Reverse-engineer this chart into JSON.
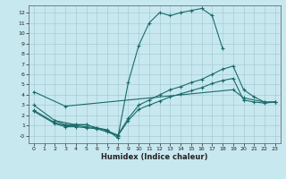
{
  "bg_color": "#c8e8f0",
  "grid_color": "#a8ccd4",
  "line_color": "#1a6b6b",
  "xlabel": "Humidex (Indice chaleur)",
  "xlim": [
    -0.5,
    23.5
  ],
  "ylim": [
    -0.7,
    12.7
  ],
  "xticks": [
    0,
    1,
    2,
    3,
    4,
    5,
    6,
    7,
    8,
    9,
    10,
    11,
    12,
    13,
    14,
    15,
    16,
    17,
    18,
    19,
    20,
    21,
    22,
    23
  ],
  "yticks": [
    0,
    1,
    2,
    3,
    4,
    5,
    6,
    7,
    8,
    9,
    10,
    11,
    12
  ],
  "ytick_labels": [
    "-0",
    "1",
    "2",
    "3",
    "4",
    "5",
    "6",
    "7",
    "8",
    "9",
    "10",
    "11",
    "12"
  ],
  "line1": {
    "x": [
      0,
      3,
      19,
      20,
      22,
      23
    ],
    "y": [
      4.3,
      2.9,
      4.5,
      3.7,
      3.3,
      3.3
    ]
  },
  "line2": {
    "x": [
      2,
      4,
      5
    ],
    "y": [
      1.5,
      1.1,
      1.1
    ]
  },
  "line_peak": {
    "x": [
      0,
      2,
      3,
      4,
      5,
      6,
      7,
      8,
      9,
      10,
      11,
      12,
      13,
      14,
      15,
      16,
      17,
      18
    ],
    "y": [
      3.0,
      1.5,
      1.1,
      1.1,
      1.1,
      0.8,
      0.6,
      -0.2,
      5.2,
      8.8,
      11.0,
      12.0,
      11.7,
      12.0,
      12.2,
      12.4,
      11.7,
      8.5
    ]
  },
  "line_mid": {
    "x": [
      0,
      2,
      3,
      4,
      5,
      6,
      7,
      8,
      9,
      10,
      11,
      12,
      13,
      14,
      15,
      16,
      17,
      18,
      19,
      20,
      21,
      22,
      23
    ],
    "y": [
      2.5,
      1.3,
      1.0,
      1.0,
      0.9,
      0.8,
      0.5,
      0.1,
      1.7,
      3.0,
      3.5,
      4.0,
      4.5,
      4.8,
      5.2,
      5.5,
      6.0,
      6.5,
      6.8,
      4.5,
      3.8,
      3.3,
      3.3
    ]
  },
  "line_low": {
    "x": [
      0,
      2,
      3,
      4,
      5,
      6,
      7,
      8,
      9,
      10,
      11,
      12,
      13,
      14,
      15,
      16,
      17,
      18,
      19,
      20,
      21,
      22,
      23
    ],
    "y": [
      2.4,
      1.2,
      0.9,
      0.9,
      0.8,
      0.7,
      0.4,
      0.0,
      1.5,
      2.6,
      3.0,
      3.4,
      3.8,
      4.1,
      4.4,
      4.7,
      5.1,
      5.4,
      5.6,
      3.5,
      3.3,
      3.2,
      3.3
    ]
  }
}
